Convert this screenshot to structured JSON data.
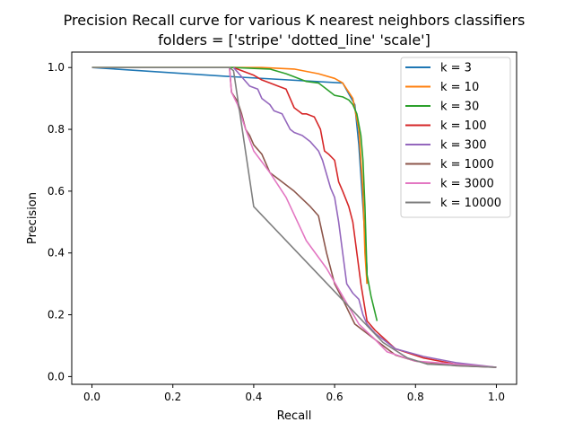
{
  "chart_data": {
    "type": "line",
    "title_line1": "Precision Recall curve for various K nearest neighbors classifiers",
    "title_line2": "folders = ['stripe' 'dotted_line' 'scale']",
    "xlabel": "Recall",
    "ylabel": "Precision",
    "xlim": [
      -0.05,
      1.05
    ],
    "ylim": [
      -0.025,
      1.05
    ],
    "xticks": [
      "0.0",
      "0.2",
      "0.4",
      "0.6",
      "0.8",
      "1.0"
    ],
    "yticks": [
      "0.0",
      "0.2",
      "0.4",
      "0.6",
      "0.8",
      "1.0"
    ],
    "grid": false,
    "legend_position": "top-right",
    "series": [
      {
        "name": "k = 3",
        "color": "#1f77b4",
        "x": [
          0.0,
          0.35,
          0.62,
          0.65,
          0.66,
          0.67,
          0.68,
          0.68
        ],
        "y": [
          1.0,
          0.97,
          0.95,
          0.88,
          0.75,
          0.55,
          0.35,
          0.3
        ]
      },
      {
        "name": "k = 10",
        "color": "#ff7f0e",
        "x": [
          0.0,
          0.35,
          0.42,
          0.5,
          0.56,
          0.6,
          0.62,
          0.645,
          0.66,
          0.67,
          0.675,
          0.68
        ],
        "y": [
          1.0,
          1.0,
          1.0,
          0.995,
          0.98,
          0.965,
          0.95,
          0.9,
          0.8,
          0.6,
          0.4,
          0.3
        ]
      },
      {
        "name": "k = 30",
        "color": "#2ca02c",
        "x": [
          0.0,
          0.35,
          0.44,
          0.48,
          0.5,
          0.53,
          0.56,
          0.58,
          0.6,
          0.62,
          0.635,
          0.645,
          0.655,
          0.665,
          0.67,
          0.675,
          0.68,
          0.69,
          0.705
        ],
        "y": [
          1.0,
          1.0,
          0.995,
          0.98,
          0.97,
          0.955,
          0.95,
          0.93,
          0.91,
          0.905,
          0.895,
          0.88,
          0.85,
          0.78,
          0.7,
          0.55,
          0.33,
          0.26,
          0.18
        ]
      },
      {
        "name": "k = 100",
        "color": "#d62728",
        "x": [
          0.35,
          0.38,
          0.4,
          0.42,
          0.44,
          0.46,
          0.48,
          0.5,
          0.51,
          0.52,
          0.53,
          0.55,
          0.565,
          0.575,
          0.585,
          0.6,
          0.61,
          0.62,
          0.635,
          0.645,
          0.655,
          0.665,
          0.675,
          0.68,
          0.7,
          0.75,
          0.82,
          0.9,
          1.0
        ],
        "y": [
          1.0,
          0.985,
          0.975,
          0.96,
          0.95,
          0.94,
          0.93,
          0.87,
          0.86,
          0.85,
          0.85,
          0.84,
          0.8,
          0.73,
          0.72,
          0.7,
          0.63,
          0.6,
          0.55,
          0.5,
          0.4,
          0.3,
          0.22,
          0.18,
          0.15,
          0.09,
          0.06,
          0.04,
          0.03
        ]
      },
      {
        "name": "k = 300",
        "color": "#9467bd",
        "x": [
          0.35,
          0.37,
          0.39,
          0.41,
          0.42,
          0.44,
          0.45,
          0.47,
          0.49,
          0.5,
          0.52,
          0.54,
          0.56,
          0.57,
          0.59,
          0.6,
          0.61,
          0.62,
          0.63,
          0.645,
          0.66,
          0.67,
          0.68,
          0.7,
          0.75,
          0.82,
          0.9,
          1.0
        ],
        "y": [
          1.0,
          0.97,
          0.94,
          0.93,
          0.9,
          0.88,
          0.86,
          0.85,
          0.8,
          0.79,
          0.78,
          0.76,
          0.73,
          0.7,
          0.61,
          0.58,
          0.5,
          0.4,
          0.3,
          0.27,
          0.25,
          0.2,
          0.17,
          0.14,
          0.09,
          0.065,
          0.045,
          0.03
        ]
      },
      {
        "name": "k = 1000",
        "color": "#8c564b",
        "x": [
          0.34,
          0.345,
          0.36,
          0.37,
          0.38,
          0.39,
          0.4,
          0.42,
          0.44,
          0.46,
          0.5,
          0.54,
          0.56,
          0.58,
          0.6,
          0.62,
          0.65,
          0.7,
          0.75,
          0.8,
          0.9,
          1.0
        ],
        "y": [
          1.0,
          0.92,
          0.89,
          0.85,
          0.8,
          0.78,
          0.75,
          0.72,
          0.66,
          0.64,
          0.6,
          0.55,
          0.52,
          0.4,
          0.3,
          0.25,
          0.17,
          0.12,
          0.07,
          0.05,
          0.035,
          0.03
        ]
      },
      {
        "name": "k = 3000",
        "color": "#e377c2",
        "x": [
          0.34,
          0.345,
          0.36,
          0.38,
          0.4,
          0.44,
          0.48,
          0.53,
          0.58,
          0.62,
          0.66,
          0.7,
          0.73,
          0.8,
          0.9,
          1.0
        ],
        "y": [
          1.0,
          0.92,
          0.88,
          0.8,
          0.73,
          0.66,
          0.58,
          0.44,
          0.35,
          0.26,
          0.17,
          0.12,
          0.08,
          0.05,
          0.04,
          0.03
        ]
      },
      {
        "name": "k = 10000",
        "color": "#7f7f7f",
        "x": [
          0.0,
          0.34,
          0.35,
          0.4,
          0.72,
          0.78,
          0.83,
          1.0
        ],
        "y": [
          1.0,
          1.0,
          0.99,
          0.55,
          0.11,
          0.06,
          0.04,
          0.03
        ]
      }
    ]
  }
}
